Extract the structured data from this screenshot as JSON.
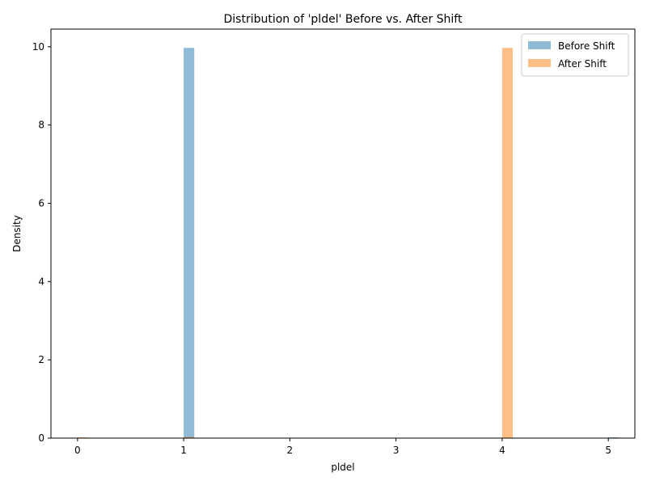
{
  "chart_data": {
    "type": "bar",
    "title": "Distribution of 'pldel' Before vs. After Shift",
    "xlabel": "pldel",
    "ylabel": "Density",
    "xlim": [
      -0.25,
      5.25
    ],
    "ylim": [
      0,
      10.45
    ],
    "xticks": [
      0,
      1,
      2,
      3,
      4,
      5
    ],
    "yticks": [
      0,
      2,
      4,
      6,
      8,
      10
    ],
    "bin_width": 0.1,
    "grid": false,
    "legend_position": "upper-right",
    "series": [
      {
        "name": "Before Shift",
        "color": "#1f77b4",
        "opacity": 0.5,
        "bins": [
          {
            "x0": 1.0,
            "x1": 1.1,
            "value": 9.97
          },
          {
            "x0": 5.0,
            "x1": 5.1,
            "value": 0.02
          }
        ]
      },
      {
        "name": "After Shift",
        "color": "#ff7f0e",
        "opacity": 0.5,
        "bins": [
          {
            "x0": 0.0,
            "x1": 0.1,
            "value": 0.02
          },
          {
            "x0": 1.0,
            "x1": 1.1,
            "value": 0.03
          },
          {
            "x0": 4.0,
            "x1": 4.1,
            "value": 9.97
          }
        ]
      }
    ]
  }
}
